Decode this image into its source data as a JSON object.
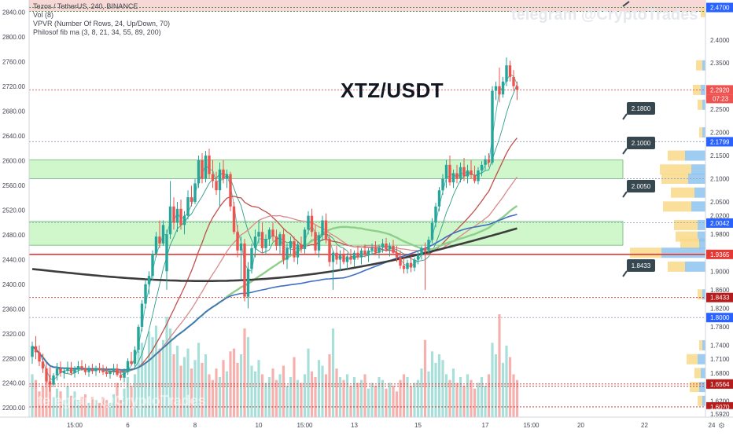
{
  "legend": {
    "line1": "Tezos / TetherUS, 240, BINANCE",
    "line2": "Vol (8)",
    "line3": "VPVR (Number Of Rows, 24, Up/Down, 70)",
    "line4": "Philosof fib ma (3, 8, 21, 34, 55, 89, 200)"
  },
  "pair_title": "XTZ/USDT",
  "watermark": "telegram @CryptoTrades",
  "watermark_bottom": "telegram @CryptoTrades",
  "colors": {
    "up": "#26a69a",
    "down": "#ef5350",
    "zone_fill": "#c8f5c3",
    "zone_border": "#4caf50",
    "current_price": "#ef5350",
    "blue_label": "#2962ff",
    "dark_red_label": "#b71c1c",
    "dark_label": "#37474f",
    "ma_fast": "#26a69a",
    "ma_red": "#e57373",
    "ma_green": "#81c784",
    "ma_blue": "#3f6fc4",
    "ma_200": "#3d3d3d"
  },
  "chart_data": {
    "type": "candlestick",
    "left_axis": {
      "ticks": [
        "2840.00",
        "2800.00",
        "2760.00",
        "2720.00",
        "2680.00",
        "2640.00",
        "2600.00",
        "2560.00",
        "2520.00",
        "2480.00",
        "2440.00",
        "2400.00",
        "2360.00",
        "2320.00",
        "2280.00",
        "2240.00",
        "2200.00"
      ],
      "range": [
        2185,
        2860
      ],
      "series": "volume (Vol 8)"
    },
    "right_axis": {
      "ticks": [
        "2.4000",
        "2.3500",
        "2.2500",
        "2.2000",
        "2.1500",
        "2.1000",
        "2.0500",
        "2.0200",
        "1.9800",
        "1.9000",
        "1.8600",
        "1.8200",
        "1.7800",
        "1.7400",
        "1.7100",
        "1.6800",
        "1.6200"
      ],
      "range": [
        1.5848,
        2.4862
      ],
      "labels": [
        {
          "value": 2.47,
          "text": "2.4700",
          "style": "blue"
        },
        {
          "value": 2.292,
          "text": "2.2920",
          "style": "current",
          "timer": "07:23"
        },
        {
          "value": 2.1799,
          "text": "2.1799",
          "style": "blue"
        },
        {
          "value": 2.0042,
          "text": "2.0042",
          "style": "blue"
        },
        {
          "value": 1.9365,
          "text": "1.9365",
          "style": "red"
        },
        {
          "value": 1.8433,
          "text": "1.8433",
          "style": "darkred"
        },
        {
          "value": 1.8,
          "text": "1.8000",
          "style": "blue"
        },
        {
          "value": 1.6564,
          "text": "1.6564",
          "style": "darkred"
        },
        {
          "value": 1.607,
          "text": "1.6070",
          "style": "darkred"
        },
        {
          "value": 1.592,
          "text": "1.5920",
          "style": "gray"
        }
      ]
    },
    "x_axis": {
      "ticks": [
        {
          "label": "15:00",
          "bar": 12
        },
        {
          "label": "6",
          "bar": 27
        },
        {
          "label": "8",
          "bar": 46
        },
        {
          "label": "10",
          "bar": 64
        },
        {
          "label": "15:00",
          "bar": 77
        },
        {
          "label": "13",
          "bar": 91
        },
        {
          "label": "15",
          "bar": 109
        },
        {
          "label": "17",
          "bar": 128
        },
        {
          "label": "15:00",
          "bar": 141
        },
        {
          "label": "20",
          "bar": 155
        },
        {
          "label": "22",
          "bar": 173
        },
        {
          "label": "24",
          "bar": 192
        }
      ],
      "corner": "⚙"
    },
    "zones": [
      {
        "from": 2.1,
        "to": 2.1404
      },
      {
        "from": 1.9563,
        "to": 2.0077
      }
    ],
    "levels": [
      {
        "price": 2.1,
        "label": "2.1000",
        "dashed": true
      },
      {
        "price": 2.18,
        "label": "2.1800",
        "dashed": true
      },
      {
        "price": 2.005,
        "label": "2.0050",
        "dashed": true
      },
      {
        "price": 1.8433,
        "label": "1.8433",
        "dashed": true
      },
      {
        "price": 1.9365,
        "solid": true
      },
      {
        "price": 2.292,
        "dashed": true
      },
      {
        "price": 1.8,
        "dashed": true
      },
      {
        "price": 2.47,
        "dashed": true
      },
      {
        "price": 2.4615,
        "dashed": true
      },
      {
        "price": 1.6564,
        "dashed": true
      },
      {
        "price": 1.607,
        "dashed": true
      },
      {
        "price": 1.6516,
        "dashed": true
      }
    ],
    "ohlc": [
      [
        1.715,
        1.748,
        1.7,
        1.738
      ],
      [
        1.738,
        1.76,
        1.71,
        1.725
      ],
      [
        1.725,
        1.74,
        1.695,
        1.705
      ],
      [
        1.705,
        1.722,
        1.68,
        1.69
      ],
      [
        1.69,
        1.702,
        1.658,
        1.662
      ],
      [
        1.662,
        1.676,
        1.64,
        1.655
      ],
      [
        1.655,
        1.68,
        1.65,
        1.675
      ],
      [
        1.675,
        1.702,
        1.664,
        1.69
      ],
      [
        1.69,
        1.705,
        1.672,
        1.68
      ],
      [
        1.68,
        1.692,
        1.668,
        1.685
      ],
      [
        1.685,
        1.705,
        1.678,
        1.692
      ],
      [
        1.692,
        1.704,
        1.675,
        1.68
      ],
      [
        1.68,
        1.695,
        1.67,
        1.688
      ],
      [
        1.688,
        1.706,
        1.678,
        1.695
      ],
      [
        1.695,
        1.708,
        1.685,
        1.69
      ],
      [
        1.69,
        1.7,
        1.676,
        1.682
      ],
      [
        1.682,
        1.696,
        1.672,
        1.688
      ],
      [
        1.688,
        1.7,
        1.678,
        1.684
      ],
      [
        1.684,
        1.696,
        1.674,
        1.69
      ],
      [
        1.69,
        1.702,
        1.68,
        1.686
      ],
      [
        1.686,
        1.698,
        1.676,
        1.682
      ],
      [
        1.682,
        1.694,
        1.672,
        1.678
      ],
      [
        1.678,
        1.69,
        1.668,
        1.684
      ],
      [
        1.684,
        1.7,
        1.676,
        1.69
      ],
      [
        1.69,
        1.7,
        1.672,
        1.676
      ],
      [
        1.676,
        1.688,
        1.664,
        1.67
      ],
      [
        1.67,
        1.69,
        1.66,
        1.682
      ],
      [
        1.682,
        1.712,
        1.676,
        1.706
      ],
      [
        1.706,
        1.726,
        1.696,
        1.7
      ],
      [
        1.7,
        1.738,
        1.694,
        1.73
      ],
      [
        1.73,
        1.785,
        1.724,
        1.78
      ],
      [
        1.78,
        1.838,
        1.77,
        1.83
      ],
      [
        1.83,
        1.88,
        1.82,
        1.872
      ],
      [
        1.872,
        1.9,
        1.85,
        1.89
      ],
      [
        1.89,
        1.945,
        1.88,
        1.938
      ],
      [
        1.938,
        1.985,
        1.93,
        1.975
      ],
      [
        1.975,
        2.01,
        1.95,
        1.96
      ],
      [
        1.96,
        2.01,
        1.955,
        2.0
      ],
      [
        1.9,
        1.99,
        1.86,
        1.98
      ],
      [
        1.98,
        2.095,
        1.97,
        2.04
      ],
      [
        2.04,
        2.06,
        1.99,
        2.005
      ],
      [
        2.005,
        2.05,
        1.985,
        2.035
      ],
      [
        2.035,
        2.055,
        1.99,
        2.0
      ],
      [
        2.0,
        2.03,
        1.98,
        2.02
      ],
      [
        2.02,
        2.075,
        2.012,
        2.06
      ],
      [
        2.06,
        2.085,
        2.04,
        2.05
      ],
      [
        2.05,
        2.1,
        2.045,
        2.09
      ],
      [
        2.09,
        2.15,
        2.08,
        2.14
      ],
      [
        2.14,
        2.155,
        2.09,
        2.1
      ],
      [
        2.1,
        2.16,
        2.092,
        2.15
      ],
      [
        2.15,
        2.165,
        2.1,
        2.11
      ],
      [
        2.11,
        2.14,
        2.08,
        2.095
      ],
      [
        2.095,
        2.115,
        2.065,
        2.075
      ],
      [
        2.075,
        2.135,
        2.04,
        2.12
      ],
      [
        2.12,
        2.14,
        2.09,
        2.1
      ],
      [
        2.1,
        2.12,
        2.08,
        2.11
      ],
      [
        2.11,
        2.115,
        2.03,
        2.04
      ],
      [
        2.04,
        2.05,
        1.98,
        1.985
      ],
      [
        1.985,
        2.0,
        1.93,
        1.945
      ],
      [
        1.945,
        1.975,
        1.88,
        1.96
      ],
      [
        1.96,
        1.97,
        1.835,
        1.845
      ],
      [
        1.845,
        1.92,
        1.82,
        1.905
      ],
      [
        1.905,
        1.96,
        1.895,
        1.95
      ],
      [
        1.95,
        1.99,
        1.93,
        1.975
      ],
      [
        1.975,
        2.01,
        1.96,
        1.985
      ],
      [
        1.985,
        2.005,
        1.94,
        1.95
      ],
      [
        1.95,
        1.98,
        1.935,
        1.97
      ],
      [
        1.97,
        1.995,
        1.955,
        1.99
      ],
      [
        1.99,
        2.005,
        1.965,
        1.975
      ],
      [
        1.975,
        1.99,
        1.945,
        1.955
      ],
      [
        1.955,
        1.985,
        1.935,
        1.98
      ],
      [
        1.98,
        1.99,
        1.915,
        1.925
      ],
      [
        1.925,
        1.96,
        1.905,
        1.95
      ],
      [
        1.95,
        1.975,
        1.935,
        1.965
      ],
      [
        1.965,
        1.975,
        1.92,
        1.93
      ],
      [
        1.93,
        1.965,
        1.915,
        1.958
      ],
      [
        1.958,
        1.975,
        1.94,
        1.948
      ],
      [
        1.948,
        1.995,
        1.938,
        1.99
      ],
      [
        1.99,
        2.03,
        1.98,
        2.02
      ],
      [
        2.02,
        2.035,
        1.975,
        1.985
      ],
      [
        1.985,
        2.0,
        1.935,
        1.945
      ],
      [
        1.945,
        1.985,
        1.93,
        1.978
      ],
      [
        1.978,
        2.02,
        1.965,
        2.01
      ],
      [
        2.01,
        2.025,
        1.96,
        1.97
      ],
      [
        1.97,
        1.98,
        1.91,
        1.92
      ],
      [
        1.92,
        1.945,
        1.86,
        1.94
      ],
      [
        1.94,
        1.955,
        1.915,
        1.925
      ],
      [
        1.925,
        1.945,
        1.9,
        1.935
      ],
      [
        1.935,
        1.95,
        1.915,
        1.92
      ],
      [
        1.92,
        1.94,
        1.905,
        1.932
      ],
      [
        1.932,
        1.948,
        1.915,
        1.925
      ],
      [
        1.925,
        1.945,
        1.91,
        1.94
      ],
      [
        1.94,
        1.955,
        1.925,
        1.93
      ],
      [
        1.93,
        1.95,
        1.915,
        1.945
      ],
      [
        1.945,
        1.958,
        1.93,
        1.935
      ],
      [
        1.935,
        1.95,
        1.92,
        1.945
      ],
      [
        1.945,
        1.96,
        1.935,
        1.95
      ],
      [
        1.95,
        1.965,
        1.935,
        1.94
      ],
      [
        1.94,
        1.958,
        1.928,
        1.952
      ],
      [
        1.952,
        1.97,
        1.94,
        1.96
      ],
      [
        1.96,
        1.972,
        1.942,
        1.948
      ],
      [
        1.948,
        1.962,
        1.932,
        1.955
      ],
      [
        1.955,
        1.968,
        1.935,
        1.94
      ],
      [
        1.94,
        1.955,
        1.92,
        1.93
      ],
      [
        1.93,
        1.945,
        1.905,
        1.912
      ],
      [
        1.912,
        1.93,
        1.895,
        1.905
      ],
      [
        1.905,
        1.925,
        1.895,
        1.918
      ],
      [
        1.918,
        1.932,
        1.898,
        1.908
      ],
      [
        1.908,
        1.93,
        1.9,
        1.925
      ],
      [
        1.925,
        1.945,
        1.915,
        1.935
      ],
      [
        1.935,
        1.955,
        1.925,
        1.95
      ],
      [
        1.95,
        1.962,
        1.86,
        1.945
      ],
      [
        1.945,
        1.975,
        1.938,
        1.968
      ],
      [
        1.968,
        2.015,
        1.96,
        2.005
      ],
      [
        2.005,
        2.048,
        1.995,
        2.04
      ],
      [
        2.04,
        2.082,
        2.03,
        2.075
      ],
      [
        2.075,
        2.11,
        2.065,
        2.1
      ],
      [
        2.1,
        2.14,
        2.08,
        2.13
      ],
      [
        2.13,
        2.15,
        2.085,
        2.092
      ],
      [
        2.092,
        2.12,
        2.08,
        2.112
      ],
      [
        2.112,
        2.13,
        2.09,
        2.1
      ],
      [
        2.1,
        2.135,
        2.092,
        2.125
      ],
      [
        2.125,
        2.145,
        2.095,
        2.105
      ],
      [
        2.105,
        2.13,
        2.09,
        2.118
      ],
      [
        2.118,
        2.14,
        2.1,
        2.108
      ],
      [
        2.108,
        2.128,
        2.09,
        2.095
      ],
      [
        2.095,
        2.125,
        2.088,
        2.118
      ],
      [
        2.118,
        2.138,
        2.105,
        2.13
      ],
      [
        2.13,
        2.15,
        2.118,
        2.142
      ],
      [
        2.142,
        2.155,
        2.125,
        2.135
      ],
      [
        2.135,
        2.3,
        2.13,
        2.29
      ],
      [
        2.29,
        2.31,
        2.27,
        2.3
      ],
      [
        2.3,
        2.34,
        2.265,
        2.282
      ],
      [
        2.282,
        2.32,
        2.275,
        2.31
      ],
      [
        2.31,
        2.362,
        2.3,
        2.345
      ],
      [
        2.345,
        2.355,
        2.31,
        2.32
      ],
      [
        2.32,
        2.335,
        2.29,
        2.3
      ],
      [
        2.3,
        2.31,
        2.27,
        2.292
      ]
    ],
    "volume_note": "red/green histogram bars at bottom, scaled to left axis",
    "volume": [
      30,
      26,
      18,
      22,
      28,
      35,
      14,
      20,
      18,
      12,
      22,
      15,
      18,
      12,
      14,
      16,
      10,
      14,
      12,
      10,
      14,
      12,
      10,
      16,
      24,
      12,
      20,
      28,
      22,
      30,
      46,
      52,
      38,
      60,
      56,
      64,
      48,
      54,
      70,
      62,
      44,
      50,
      36,
      42,
      48,
      34,
      40,
      52,
      38,
      44,
      30,
      26,
      34,
      28,
      40,
      32,
      46,
      48,
      38,
      44,
      62,
      56,
      36,
      32,
      40,
      30,
      24,
      28,
      34,
      26,
      30,
      36,
      22,
      28,
      42,
      26,
      24,
      30,
      48,
      32,
      28,
      40,
      36,
      30,
      44,
      62,
      34,
      28,
      26,
      30,
      22,
      28,
      24,
      26,
      30,
      20,
      24,
      22,
      28,
      26,
      20,
      24,
      22,
      18,
      26,
      30,
      28,
      22,
      24,
      26,
      34,
      54,
      32,
      46,
      38,
      44,
      40,
      30,
      26,
      34,
      24,
      28,
      22,
      30,
      26,
      20,
      24,
      28,
      22,
      30,
      52,
      44,
      72,
      38,
      50,
      42,
      30,
      26
    ]
  },
  "level_tags": {
    "t2180": "2.1800",
    "t2100": "2.1000",
    "t2005": "2.0050",
    "t1843": "1.8433"
  }
}
